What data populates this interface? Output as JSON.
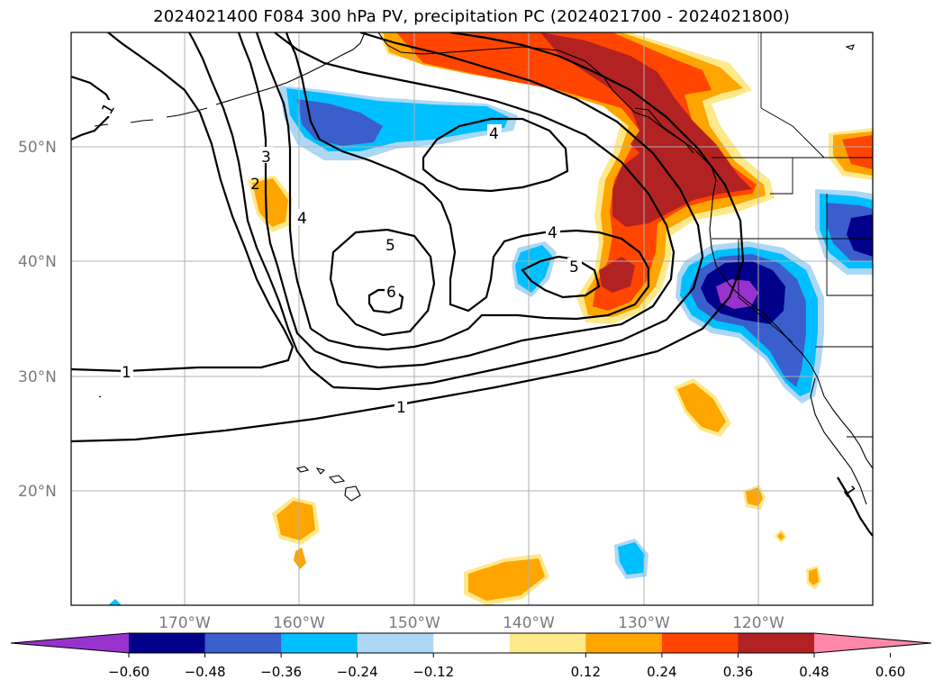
{
  "title": "2024021400 F084 300 hPa PV, precipitation PC (2024021700 - 2024021800)",
  "lat_labels": [
    "50°N",
    "40°N",
    "30°N",
    "20°N"
  ],
  "lon_labels": [
    "170°W",
    "160°W",
    "150°W",
    "140°W",
    "130°W",
    "120°W"
  ],
  "colorbar": {
    "ticks": [
      "−0.60",
      "−0.48",
      "−0.36",
      "−0.24",
      "−0.12",
      "0.12",
      "0.24",
      "0.36",
      "0.48",
      "0.60"
    ],
    "colors": [
      "#9932cc",
      "#00008b",
      "#3a5fcd",
      "#00bfff",
      "#add8f5",
      "#ffffff",
      "#fde98a",
      "#ffa500",
      "#ff4500",
      "#b22222",
      "#ff88aa"
    ]
  },
  "contour_labels": {
    "c1_north": "1",
    "c3": "3",
    "c2": "2",
    "c4_west": "4",
    "c4_north": "4",
    "c5_west": "5",
    "c6": "6",
    "c4_east": "4",
    "c5_east": "5",
    "c1_west": "1",
    "c1_south": "1",
    "c1_sw": "1"
  }
}
